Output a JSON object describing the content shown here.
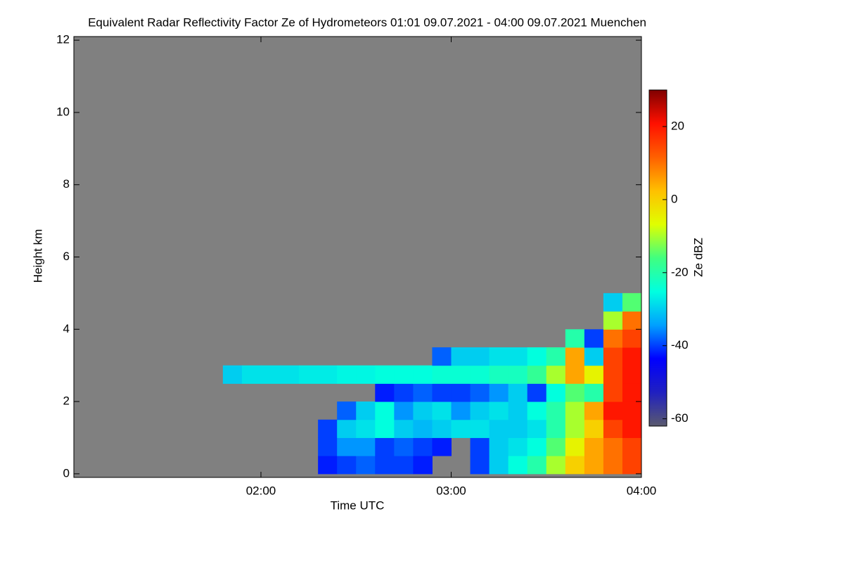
{
  "chart_data": {
    "type": "heatmap",
    "title": "Equivalent Radar Reflectivity Factor Ze of Hydrometeors   01:01 09.07.2021 - 04:00 09.07.2021 Muenchen",
    "xlabel": "Time UTC",
    "ylabel": "Height km",
    "colorbar_label": "Ze dBZ",
    "background": "#808080",
    "xlim": [
      1.0167,
      4.0
    ],
    "xticks": [
      {
        "value": 2,
        "label": "02:00"
      },
      {
        "value": 3,
        "label": "03:00"
      },
      {
        "value": 4,
        "label": "04:00"
      }
    ],
    "ylim": [
      -0.1,
      12.1
    ],
    "yticks": [
      0,
      2,
      4,
      6,
      8,
      10,
      12
    ],
    "zlim": [
      -62,
      30
    ],
    "zticks": [
      -60,
      -40,
      -20,
      0,
      20
    ],
    "colormap": [
      "#5a5a6e",
      "#2020c0",
      "#0000ff",
      "#00a0ff",
      "#00ffe0",
      "#40ff80",
      "#e0ff00",
      "#ffc000",
      "#ff6000",
      "#ff1000",
      "#800000"
    ],
    "x": [
      1.85,
      1.95,
      2.05,
      2.15,
      2.25,
      2.35,
      2.45,
      2.55,
      2.65,
      2.75,
      2.85,
      2.95,
      3.05,
      3.15,
      3.25,
      3.35,
      3.45,
      3.55,
      3.65,
      3.75,
      3.85,
      3.95
    ],
    "y": [
      0.25,
      0.75,
      1.25,
      1.75,
      2.25,
      2.75,
      3.25,
      3.75,
      4.25,
      4.75
    ],
    "z": [
      [
        null,
        null,
        null,
        null,
        null,
        -42,
        -40,
        -38,
        -40,
        -40,
        -42,
        null,
        null,
        -40,
        -30,
        -25,
        -20,
        -10,
        0,
        5,
        10,
        15
      ],
      [
        null,
        null,
        null,
        null,
        null,
        -40,
        -35,
        -35,
        -40,
        -38,
        -40,
        -42,
        null,
        -40,
        -30,
        -28,
        -25,
        -15,
        -5,
        5,
        10,
        15
      ],
      [
        null,
        null,
        null,
        null,
        null,
        -40,
        -30,
        -28,
        -25,
        -30,
        -32,
        -30,
        -28,
        -28,
        -30,
        -30,
        -28,
        -20,
        -10,
        0,
        15,
        20
      ],
      [
        null,
        null,
        null,
        null,
        null,
        null,
        -38,
        -30,
        -25,
        -35,
        -30,
        -28,
        -35,
        -30,
        -28,
        -30,
        -25,
        -20,
        -10,
        5,
        20,
        20
      ],
      [
        null,
        null,
        null,
        null,
        null,
        null,
        null,
        null,
        -42,
        -40,
        -38,
        -40,
        -40,
        -38,
        -35,
        -30,
        -40,
        -25,
        -15,
        -20,
        15,
        20
      ],
      [
        -30,
        -28,
        -28,
        -28,
        -27,
        -27,
        -26,
        -26,
        -25,
        -25,
        -25,
        -24,
        -24,
        -24,
        -22,
        -22,
        -18,
        -10,
        5,
        -5,
        15,
        20
      ],
      [
        null,
        null,
        null,
        null,
        null,
        null,
        null,
        null,
        null,
        null,
        null,
        -38,
        -30,
        -30,
        -28,
        -28,
        -25,
        -20,
        5,
        -30,
        15,
        20
      ],
      [
        null,
        null,
        null,
        null,
        null,
        null,
        null,
        null,
        null,
        null,
        null,
        null,
        null,
        null,
        null,
        null,
        null,
        null,
        -20,
        -40,
        10,
        15
      ],
      [
        null,
        null,
        null,
        null,
        null,
        null,
        null,
        null,
        null,
        null,
        null,
        null,
        null,
        null,
        null,
        null,
        null,
        null,
        null,
        null,
        -10,
        10
      ],
      [
        null,
        null,
        null,
        null,
        null,
        null,
        null,
        null,
        null,
        null,
        null,
        null,
        null,
        null,
        null,
        null,
        null,
        null,
        null,
        null,
        -30,
        -15
      ]
    ]
  }
}
